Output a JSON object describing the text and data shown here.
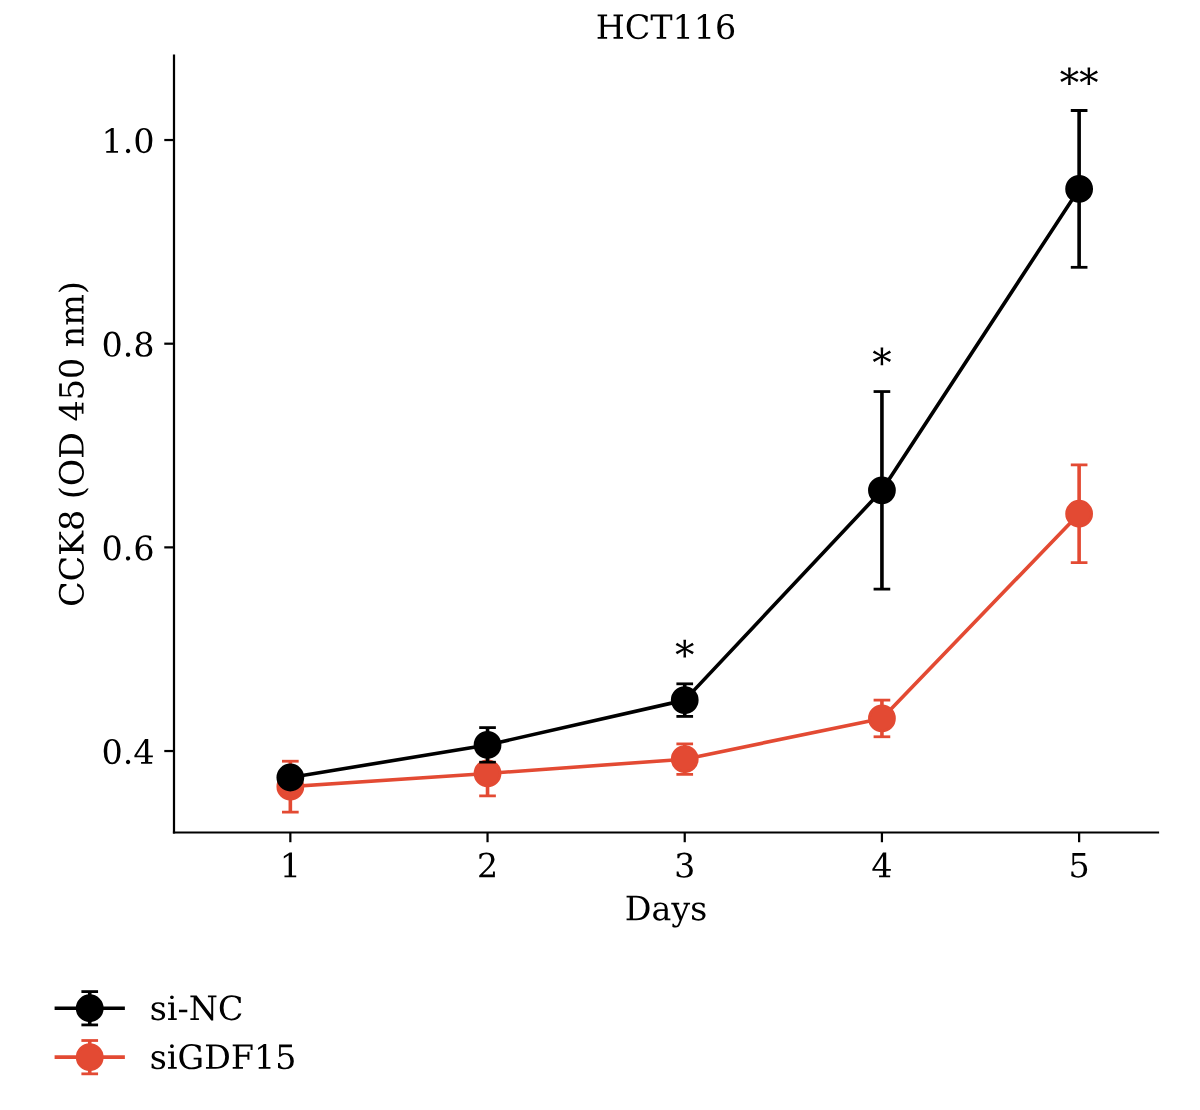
{
  "chart_data": {
    "type": "line",
    "title": "HCT116",
    "xlabel": "Days",
    "ylabel": "CCK8 (OD 450 nm)",
    "x": [
      1,
      2,
      3,
      4,
      5
    ],
    "xlim": [
      0.41,
      5.4
    ],
    "xticks": [
      1,
      2,
      3,
      4,
      5
    ],
    "ylim": [
      0.32,
      1.083
    ],
    "yticks": [
      {
        "value": 0.4,
        "label": "0.4"
      },
      {
        "value": 0.6,
        "label": "0.6"
      },
      {
        "value": 0.8,
        "label": "0.8"
      },
      {
        "value": 1.0,
        "label": "1.0"
      }
    ],
    "series": [
      {
        "name": "si-NC",
        "color": "#000000",
        "values": [
          0.374,
          0.406,
          0.45,
          0.656,
          0.952
        ],
        "errors": [
          0.005,
          0.017,
          0.016,
          0.097,
          0.077
        ]
      },
      {
        "name": "siGDF15",
        "color": "#e34a33",
        "values": [
          0.365,
          0.378,
          0.392,
          0.432,
          0.633
        ],
        "errors": [
          0.025,
          0.022,
          0.015,
          0.018,
          0.048
        ]
      }
    ],
    "annotations": [
      {
        "text": "*",
        "x": 3,
        "y": 0.473
      },
      {
        "text": "*",
        "x": 4,
        "y": 0.76
      },
      {
        "text": "**",
        "x": 5,
        "y": 1.035
      }
    ],
    "marker": "circle",
    "line_style": "solid",
    "grid": false,
    "legend": "bottom left"
  }
}
